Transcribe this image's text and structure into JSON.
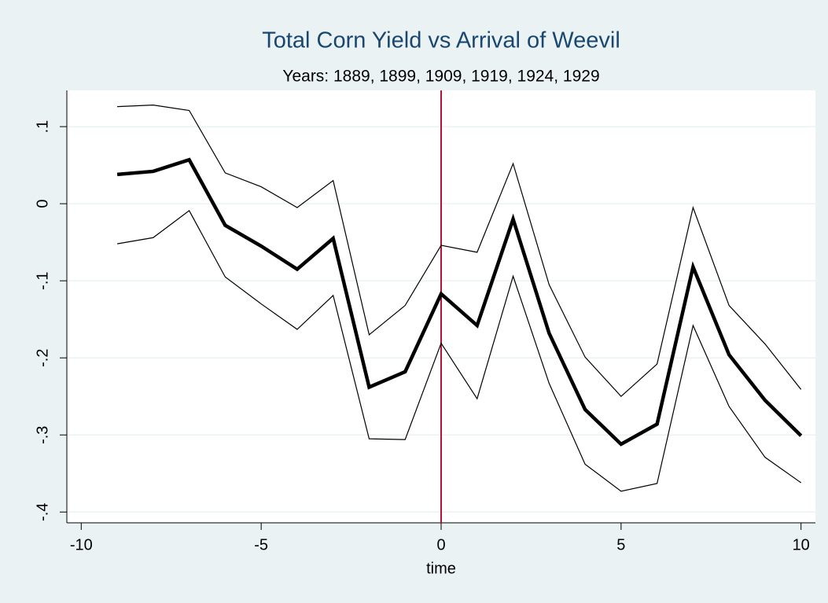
{
  "chart_data": {
    "type": "line",
    "title": "Total Corn Yield vs Arrival of Weevil",
    "subtitle": "Years: 1889, 1899, 1909, 1919, 1924, 1929",
    "x_label": "time",
    "x": [
      -9,
      -8,
      -7,
      -6,
      -5,
      -4,
      -3,
      -2,
      -1,
      0,
      1,
      2,
      3,
      4,
      5,
      6,
      7,
      8,
      9,
      10
    ],
    "series": [
      {
        "color": "#000000",
        "line_width": 1.2,
        "values": [
          0.126,
          0.128,
          0.121,
          0.04,
          0.022,
          -0.005,
          0.03,
          -0.17,
          -0.132,
          -0.054,
          -0.063,
          0.052,
          -0.105,
          -0.199,
          -0.25,
          -0.208,
          -0.005,
          -0.132,
          -0.182,
          -0.241
        ]
      },
      {
        "color": "#000000",
        "line_width": 4.5,
        "values": [
          0.038,
          0.042,
          0.057,
          -0.028,
          -0.055,
          -0.085,
          -0.045,
          -0.238,
          -0.218,
          -0.117,
          -0.158,
          -0.02,
          -0.168,
          -0.267,
          -0.312,
          -0.286,
          -0.082,
          -0.196,
          -0.255,
          -0.301
        ]
      },
      {
        "color": "#000000",
        "line_width": 1.2,
        "values": [
          -0.052,
          -0.044,
          -0.009,
          -0.095,
          -0.13,
          -0.163,
          -0.119,
          -0.305,
          -0.306,
          -0.181,
          -0.253,
          -0.094,
          -0.233,
          -0.338,
          -0.373,
          -0.363,
          -0.158,
          -0.263,
          -0.329,
          -0.362
        ]
      }
    ],
    "vline": 0,
    "vline_color": "#b5123a",
    "xlim": [
      -10.4,
      10.4
    ],
    "xticks": [
      -10,
      -5,
      0,
      5,
      10
    ],
    "ylim": [
      -0.414,
      0.147
    ],
    "yticks": [
      {
        "value": 0.1,
        "label": ".1"
      },
      0,
      {
        "value": -0.1,
        "label": "-.1"
      },
      {
        "value": -0.2,
        "label": "-.2"
      },
      {
        "value": -0.3,
        "label": "-.3"
      },
      {
        "value": -0.4,
        "label": "-.4"
      }
    ],
    "grid": true
  }
}
